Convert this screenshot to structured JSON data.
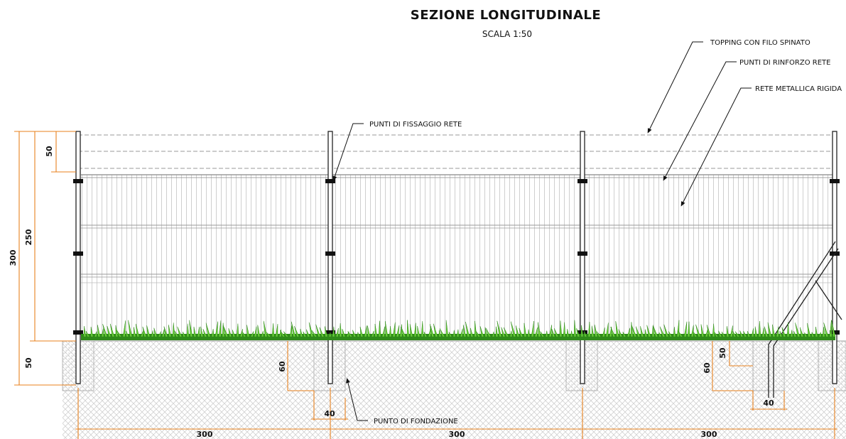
{
  "title": "SEZIONE LONGITUDINALE",
  "scale": "SCALA 1:50",
  "labels": {
    "topping": "TOPPING CON FILO SPINATO",
    "rinforzo": "PUNTI DI RINFORZO RETE",
    "rete": "RETE METALLICA RIGIDA",
    "fissaggio": "PUNTI DI FISSAGGIO RETE",
    "fondazione": "PUNTO DI FONDAZIONE"
  },
  "dimensions": {
    "total_height": "300",
    "mesh_height": "250",
    "top_50": "50",
    "bottom_50": "50",
    "foundation_depth_1": "60",
    "foundation_width_1": "40",
    "foundation_depth_2": "60",
    "foundation_extra_2": "50",
    "foundation_width_2": "40",
    "span_1": "300",
    "span_2": "300",
    "span_3": "300"
  },
  "colors": {
    "dimension": "#e8821e",
    "grass": "#6bd03a",
    "grass_dark": "#2f8a1a",
    "ground_hatch": "#c8c8c8",
    "post": "#222222"
  }
}
